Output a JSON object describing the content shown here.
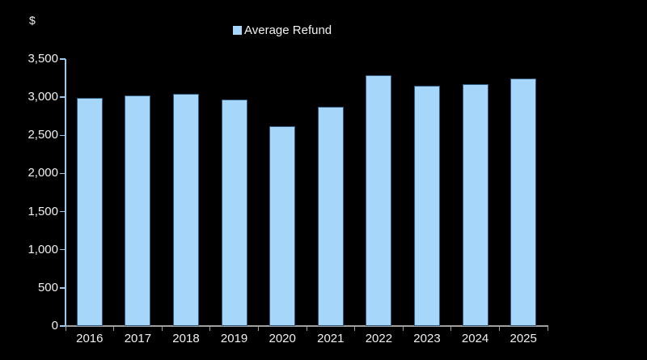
{
  "chart": {
    "legend": {
      "label": "Average Refund",
      "swatch_icon": "filled-square"
    }
  },
  "chart_data": {
    "type": "bar",
    "title": "",
    "categories": [
      "2016",
      "2017",
      "2018",
      "2019",
      "2020",
      "2021",
      "2022",
      "2023",
      "2024",
      "2025"
    ],
    "values": [
      2990,
      3020,
      3040,
      2975,
      2620,
      2870,
      3285,
      3150,
      3175,
      3245
    ],
    "series_name": "Average Refund",
    "xlabel": "",
    "ylabel": "$",
    "ylim": [
      0,
      3500
    ],
    "yticks": [
      0,
      500,
      1000,
      1500,
      2000,
      2500,
      3000,
      3500
    ],
    "ytick_labels": [
      "0",
      "500",
      "1,000",
      "1,500",
      "2,000",
      "2,500",
      "3,000",
      "3,500"
    ],
    "grid": false,
    "legend_position": "top-center",
    "colors": {
      "background": "#000000",
      "bar_fill": "#A6D6FA",
      "bar_border": "#2F5A7F",
      "y_axis": "#9CC9EE",
      "x_axis": "#A0A0A0",
      "text": "#F0F0F0"
    }
  }
}
